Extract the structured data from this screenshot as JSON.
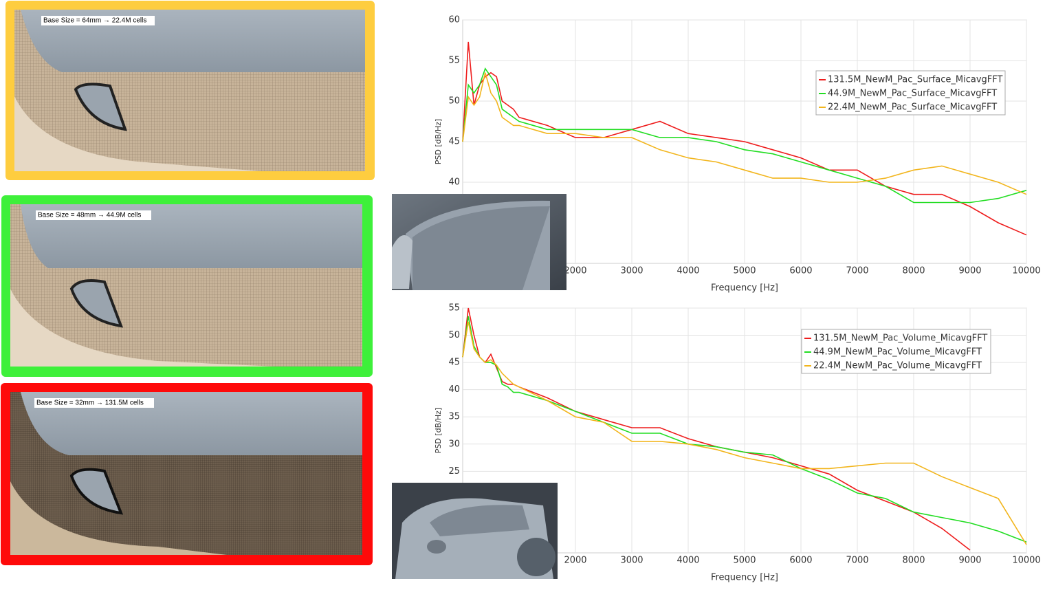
{
  "panels": [
    {
      "caption": "Base Size = 64mm → 22.4M cells"
    },
    {
      "caption": "Base Size = 48mm → 44.9M cells"
    },
    {
      "caption": "Base Size = 32mm → 131.5M cells"
    }
  ],
  "chart_data": [
    {
      "type": "line",
      "xlabel": "Frequency [Hz]",
      "ylabel": "PSD [dB/Hz]",
      "x": [
        0,
        100,
        200,
        300,
        400,
        500,
        600,
        700,
        800,
        900,
        1000,
        1500,
        2000,
        2500,
        3000,
        3500,
        4000,
        4500,
        5000,
        5500,
        6000,
        6500,
        7000,
        7500,
        8000,
        8500,
        9000,
        9500,
        10000
      ],
      "series": [
        {
          "name": "131.5M_NewM_Pac_Surface_MicavgFFT",
          "color": "#ee1c1c",
          "values": [
            45,
            57.3,
            49.5,
            52,
            53,
            53.5,
            53,
            50,
            49.5,
            49,
            48,
            47,
            45.5,
            45.5,
            46.5,
            47.5,
            46,
            45.5,
            45,
            44,
            43,
            41.5,
            41.5,
            39.5,
            38.5,
            38.5,
            37,
            35,
            33.5
          ]
        },
        {
          "name": "44.9M_NewM_Pac_Surface_MicavgFFT",
          "color": "#22dd22",
          "values": [
            45,
            52,
            51,
            52,
            54,
            53,
            52,
            49,
            48.5,
            48,
            47.5,
            46.5,
            46.5,
            46.5,
            46.5,
            45.5,
            45.5,
            45,
            44,
            43.5,
            42.5,
            41.5,
            40.5,
            39.5,
            37.5,
            37.5,
            37.5,
            38,
            39
          ]
        },
        {
          "name": "22.4M_NewM_Pac_Surface_MicavgFFT",
          "color": "#f2b51c",
          "values": [
            45,
            50.5,
            49.5,
            50.5,
            53.5,
            51,
            50,
            48,
            47.5,
            47,
            47,
            46,
            46,
            45.5,
            45.5,
            44,
            43,
            42.5,
            41.5,
            40.5,
            40.5,
            40,
            40,
            40.5,
            41.5,
            42,
            41,
            40,
            38.5
          ]
        }
      ],
      "xlim": [
        0,
        10000
      ],
      "xticks": [
        2000,
        3000,
        4000,
        5000,
        6000,
        7000,
        8000,
        9000,
        10000
      ],
      "ylim": [
        30,
        60
      ],
      "yticks": [
        40,
        45,
        50,
        55,
        60
      ],
      "grid": true,
      "legend": "upper right"
    },
    {
      "type": "line",
      "xlabel": "Frequency [Hz]",
      "ylabel": "PSD [dB/Hz]",
      "x": [
        0,
        100,
        200,
        300,
        400,
        500,
        600,
        700,
        800,
        900,
        1000,
        1500,
        2000,
        2500,
        3000,
        3500,
        4000,
        4500,
        5000,
        5500,
        6000,
        6500,
        7000,
        7500,
        8000,
        8500,
        9000,
        9500,
        10000
      ],
      "series": [
        {
          "name": "131.5M_NewM_Pac_Volume_MicavgFFT",
          "color": "#ee1c1c",
          "values": [
            46,
            55,
            50,
            46,
            45,
            46.5,
            44,
            41.5,
            41,
            41,
            40.5,
            38.5,
            36,
            34.5,
            33,
            33,
            31,
            29.5,
            28.5,
            27.5,
            26,
            24.5,
            21.5,
            19.5,
            17.5,
            14.5,
            10.5,
            null,
            null
          ]
        },
        {
          "name": "44.9M_NewM_Pac_Volume_MicavgFFT",
          "color": "#22dd22",
          "values": [
            46,
            53.5,
            48,
            46,
            45,
            45,
            44.5,
            41,
            40.5,
            39.5,
            39.5,
            38,
            36,
            34,
            32,
            32,
            30,
            29.5,
            28.5,
            28,
            25.5,
            23.5,
            21,
            20,
            17.5,
            16.5,
            15.5,
            14,
            12
          ]
        },
        {
          "name": "22.4M_NewM_Pac_Volume_MicavgFFT",
          "color": "#f2b51c",
          "values": [
            46,
            52.5,
            47.5,
            46,
            45,
            45.5,
            44.5,
            43,
            42,
            41,
            40.5,
            38,
            35,
            34,
            30.5,
            30.5,
            30,
            29,
            27.5,
            26.5,
            25.5,
            25.5,
            26,
            26.5,
            26.5,
            24,
            22,
            20,
            11.5
          ]
        }
      ],
      "xlim": [
        0,
        10000
      ],
      "xticks": [
        2000,
        3000,
        4000,
        5000,
        6000,
        7000,
        8000,
        9000,
        10000
      ],
      "ylim": [
        10,
        55
      ],
      "yticks": [
        25,
        30,
        35,
        40,
        45,
        50,
        55
      ],
      "grid": true,
      "legend": "upper right"
    }
  ]
}
